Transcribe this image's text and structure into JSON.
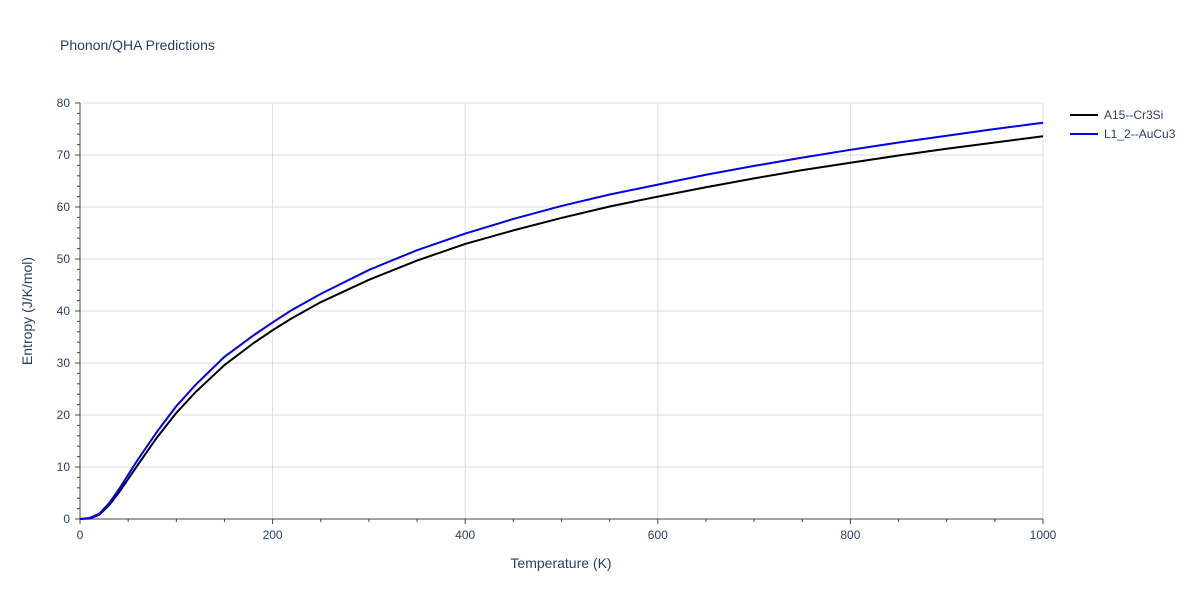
{
  "chart_data": {
    "type": "line",
    "title": "Phonon/QHA Predictions",
    "xlabel": "Temperature (K)",
    "ylabel": "Entropy (J/K/mol)",
    "xlim": [
      0,
      1000
    ],
    "ylim": [
      0,
      80
    ],
    "xticks": [
      0,
      200,
      400,
      600,
      800,
      1000
    ],
    "yticks": [
      0,
      10,
      20,
      30,
      40,
      50,
      60,
      70,
      80
    ],
    "grid": true,
    "legend_position": "top-right",
    "series": [
      {
        "name": "A15--Cr3Si",
        "color": "#000000",
        "x": [
          0,
          10,
          20,
          30,
          40,
          50,
          60,
          80,
          100,
          120,
          150,
          180,
          200,
          220,
          250,
          300,
          350,
          400,
          450,
          500,
          550,
          600,
          650,
          700,
          750,
          800,
          850,
          900,
          950,
          1000
        ],
        "y": [
          0,
          0.1,
          0.8,
          2.6,
          5.0,
          7.7,
          10.4,
          15.7,
          20.4,
          24.4,
          29.6,
          33.8,
          36.3,
          38.6,
          41.7,
          46.0,
          49.7,
          52.9,
          55.5,
          57.9,
          60.1,
          62.0,
          63.8,
          65.5,
          67.1,
          68.5,
          69.9,
          71.2,
          72.4,
          73.6
        ]
      },
      {
        "name": "L1_2--AuCu3",
        "color": "#0000ee",
        "x": [
          0,
          10,
          20,
          30,
          40,
          50,
          60,
          80,
          100,
          120,
          150,
          180,
          200,
          220,
          250,
          300,
          350,
          400,
          450,
          500,
          550,
          600,
          650,
          700,
          750,
          800,
          850,
          900,
          950,
          1000
        ],
        "y": [
          0,
          0.2,
          1.0,
          3.0,
          5.6,
          8.5,
          11.4,
          16.8,
          21.7,
          25.8,
          31.2,
          35.3,
          37.8,
          40.2,
          43.3,
          47.9,
          51.7,
          54.9,
          57.7,
          60.2,
          62.4,
          64.3,
          66.2,
          67.9,
          69.5,
          71.0,
          72.4,
          73.7,
          75.0,
          76.2
        ]
      }
    ]
  }
}
